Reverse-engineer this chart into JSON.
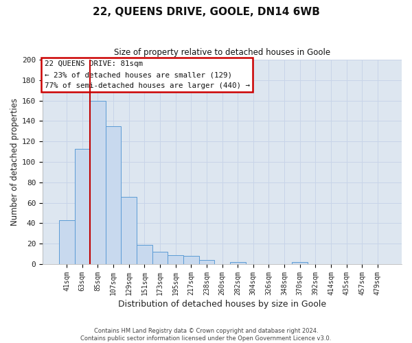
{
  "title": "22, QUEENS DRIVE, GOOLE, DN14 6WB",
  "subtitle": "Size of property relative to detached houses in Goole",
  "xlabel": "Distribution of detached houses by size in Goole",
  "ylabel": "Number of detached properties",
  "bar_labels": [
    "41sqm",
    "63sqm",
    "85sqm",
    "107sqm",
    "129sqm",
    "151sqm",
    "173sqm",
    "195sqm",
    "217sqm",
    "238sqm",
    "260sqm",
    "282sqm",
    "304sqm",
    "326sqm",
    "348sqm",
    "370sqm",
    "392sqm",
    "414sqm",
    "435sqm",
    "457sqm",
    "479sqm"
  ],
  "bar_values": [
    43,
    113,
    160,
    135,
    66,
    19,
    12,
    9,
    8,
    4,
    0,
    2,
    0,
    0,
    0,
    2,
    0,
    0,
    0,
    0,
    0
  ],
  "bar_color": "#c8d9ee",
  "bar_edge_color": "#5b9bd5",
  "vline_color": "#c00000",
  "ylim": [
    0,
    200
  ],
  "yticks": [
    0,
    20,
    40,
    60,
    80,
    100,
    120,
    140,
    160,
    180,
    200
  ],
  "annotation_title": "22 QUEENS DRIVE: 81sqm",
  "annotation_line1": "← 23% of detached houses are smaller (129)",
  "annotation_line2": "77% of semi-detached houses are larger (440) →",
  "annotation_box_color": "#ffffff",
  "annotation_box_edge": "#cc0000",
  "footer1": "Contains HM Land Registry data © Crown copyright and database right 2024.",
  "footer2": "Contains public sector information licensed under the Open Government Licence v3.0.",
  "grid_color": "#c8d4e8",
  "plot_bg_color": "#dde6f0",
  "fig_bg_color": "#ffffff"
}
